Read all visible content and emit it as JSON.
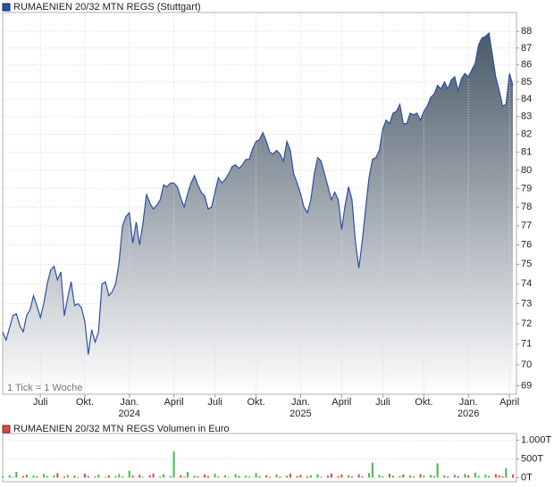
{
  "chart_data": [
    {
      "type": "area",
      "title": "RUMAENIEN 20/32 MTN REGS (Stuttgart)",
      "note": "1 Tick = 1 Woche",
      "categories": [
        null,
        null,
        null,
        null,
        null,
        null,
        null,
        null,
        null,
        null,
        null,
        "Juli",
        null,
        null,
        null,
        null,
        null,
        null,
        null,
        null,
        null,
        null,
        null,
        null,
        "Okt.",
        null,
        null,
        null,
        null,
        null,
        null,
        null,
        null,
        null,
        null,
        null,
        null,
        "Jan. 2024",
        null,
        null,
        null,
        null,
        null,
        null,
        null,
        null,
        null,
        null,
        null,
        null,
        "April",
        null,
        null,
        null,
        null,
        null,
        null,
        null,
        null,
        null,
        null,
        null,
        "Juli",
        null,
        null,
        null,
        null,
        null,
        null,
        null,
        null,
        null,
        null,
        null,
        "Okt.",
        null,
        null,
        null,
        null,
        null,
        null,
        null,
        null,
        null,
        null,
        null,
        null,
        "Jan. 2025",
        null,
        null,
        null,
        null,
        null,
        null,
        null,
        null,
        null,
        null,
        null,
        "April",
        null,
        null,
        null,
        null,
        null,
        null,
        null,
        null,
        null,
        null,
        null,
        "Juli",
        null,
        null,
        null,
        null,
        null,
        null,
        null,
        null,
        null,
        null,
        null,
        "Okt.",
        null,
        null,
        null,
        null,
        null,
        null,
        null,
        null,
        null,
        null,
        null,
        null,
        "Jan. 2026",
        null,
        null,
        null,
        null,
        null,
        null,
        null,
        null,
        null,
        null,
        null,
        "April",
        null
      ],
      "values": [
        71.6,
        71.2,
        71.8,
        72.4,
        72.5,
        71.9,
        71.6,
        72.4,
        72.7,
        73.4,
        72.9,
        72.3,
        73.0,
        74.0,
        74.7,
        74.9,
        74.2,
        74.6,
        72.4,
        73.3,
        74.1,
        72.9,
        73.0,
        72.8,
        72.1,
        70.5,
        71.7,
        71.1,
        71.6,
        74.0,
        74.1,
        73.4,
        73.6,
        74.0,
        75.1,
        77.0,
        77.5,
        77.7,
        76.1,
        77.2,
        76.0,
        77.2,
        78.7,
        78.2,
        77.9,
        78.1,
        78.4,
        79.2,
        79.1,
        79.3,
        79.3,
        79.1,
        78.5,
        78.0,
        78.7,
        79.3,
        79.7,
        79.2,
        78.8,
        78.6,
        77.9,
        78.0,
        78.8,
        79.6,
        79.3,
        79.5,
        79.8,
        80.2,
        80.3,
        80.1,
        80.3,
        80.6,
        80.6,
        81.2,
        81.6,
        81.7,
        82.1,
        81.6,
        81.0,
        80.9,
        81.1,
        80.9,
        80.5,
        81.6,
        81.1,
        79.8,
        79.3,
        78.7,
        78.0,
        77.7,
        78.4,
        79.8,
        80.7,
        80.5,
        79.8,
        79.1,
        78.4,
        78.8,
        78.4,
        76.8,
        78.1,
        79.1,
        78.4,
        76.2,
        74.8,
        76.2,
        77.9,
        79.6,
        80.6,
        80.7,
        81.1,
        82.3,
        82.8,
        82.6,
        83.2,
        83.3,
        83.7,
        82.6,
        82.6,
        83.2,
        83.1,
        83.2,
        82.8,
        83.3,
        83.6,
        84.1,
        84.3,
        84.8,
        84.6,
        85.0,
        84.6,
        85.1,
        85.3,
        84.5,
        85.2,
        85.5,
        85.3,
        85.7,
        86.1,
        87.2,
        87.6,
        87.7,
        87.9,
        86.6,
        85.3,
        84.5,
        83.6,
        83.7,
        85.5,
        84.8
      ],
      "color": "#2a50a8",
      "fill_top": "#4a5a68",
      "fill_bottom": "#ffffff",
      "ylim": [
        68.6,
        89.15
      ],
      "log": true,
      "grid": true,
      "yticks": [
        69,
        70,
        71,
        72,
        73,
        74,
        75,
        76,
        77,
        78,
        79,
        80,
        81,
        82,
        83,
        84,
        85,
        86,
        87,
        88
      ]
    },
    {
      "type": "bar",
      "title": "RUMAENIEN 20/32 MTN REGS Volumen in Euro",
      "values": [
        30000,
        0,
        60000,
        20000,
        150000,
        0,
        40000,
        80000,
        0,
        50000,
        30000,
        0,
        90000,
        40000,
        0,
        60000,
        120000,
        0,
        30000,
        70000,
        0,
        50000,
        20000,
        0,
        100000,
        40000,
        0,
        30000,
        80000,
        0,
        20000,
        60000,
        0,
        40000,
        90000,
        30000,
        0,
        180000,
        50000,
        0,
        70000,
        20000,
        0,
        60000,
        110000,
        0,
        30000,
        90000,
        0,
        40000,
        700000,
        0,
        60000,
        20000,
        150000,
        0,
        50000,
        30000,
        0,
        80000,
        40000,
        0,
        100000,
        30000,
        0,
        60000,
        20000,
        0,
        90000,
        40000,
        0,
        50000,
        30000,
        0,
        120000,
        40000,
        0,
        60000,
        20000,
        0,
        80000,
        30000,
        0,
        50000,
        100000,
        0,
        40000,
        70000,
        0,
        30000,
        60000,
        0,
        90000,
        20000,
        0,
        50000,
        110000,
        0,
        40000,
        80000,
        0,
        60000,
        30000,
        0,
        90000,
        40000,
        0,
        120000,
        400000,
        0,
        70000,
        30000,
        0,
        100000,
        50000,
        0,
        40000,
        80000,
        0,
        60000,
        30000,
        0,
        90000,
        50000,
        0,
        70000,
        40000,
        380000,
        0,
        60000,
        30000,
        0,
        80000,
        40000,
        0,
        100000,
        60000,
        0,
        130000,
        50000,
        0,
        70000,
        40000,
        0,
        90000,
        60000,
        30000,
        250000,
        0,
        80000
      ],
      "up_color": "#44bb44",
      "down_color": "#dd4444",
      "ylim": [
        -110000,
        1180000
      ],
      "yticks": [
        {
          "value": 0,
          "label": "0T"
        },
        {
          "value": 500000,
          "label": "500T"
        },
        {
          "value": 1000000,
          "label": "1.000T"
        }
      ]
    }
  ]
}
